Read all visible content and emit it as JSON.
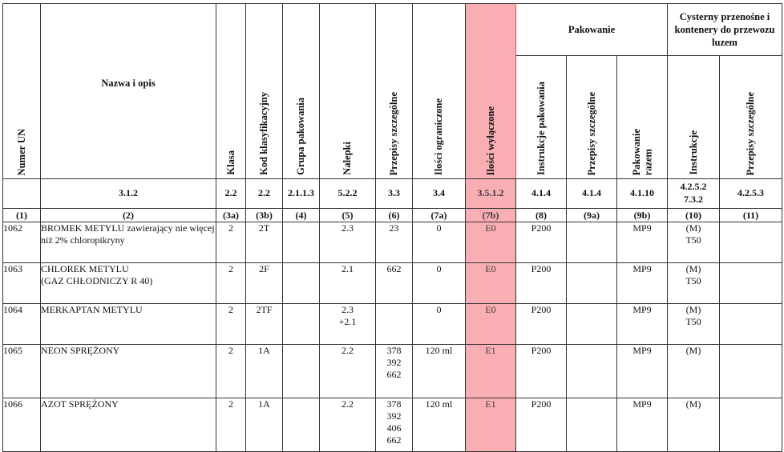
{
  "headers": {
    "un_number": "Numer UN",
    "name": "Nazwa i opis",
    "class": "Klasa",
    "class_code": "Kod klasyfikacyjny",
    "packing_group": "Grupa pakowania",
    "labels": "Nalepki",
    "special_provisions": "Przepisy szczególne",
    "limited_quantities": "Ilości ograniczone",
    "excepted_quantities": "Ilości wyłączone",
    "packaging_group": "Pakowanie",
    "packing_instructions": "Instrukcje pakowania",
    "packing_special": "Przepisy szczególne",
    "mixed_packing": "Pakowanie\nrazem",
    "tanks_group": "Cysterny przenośne i kontenery do przewozu luzem",
    "tank_instructions": "Instrukcje",
    "tank_special": "Przepisy szczególne"
  },
  "refs": [
    "",
    "3.1.2",
    "2.2",
    "2.2",
    "2.1.1.3",
    "5.2.2",
    "3.3",
    "3.4",
    "3.5.1.2",
    "4.1.4",
    "4.1.4",
    "4.1.10",
    "4.2.5.2\n7.3.2",
    "4.2.5.3"
  ],
  "colnums": [
    "(1)",
    "(2)",
    "(3a)",
    "(3b)",
    "(4)",
    "(5)",
    "(6)",
    "(7a)",
    "(7b)",
    "(8)",
    "(9a)",
    "(9b)",
    "(10)",
    "(11)"
  ],
  "rows": [
    {
      "un": "1062",
      "name": "BROMEK METYLU zawierający nie więcej niż 2% chloropikryny",
      "cls": "2",
      "code": "2T",
      "pg": "",
      "labels": "2.3",
      "sp": "23",
      "lq": "0",
      "eq": "E0",
      "pi": "P200",
      "pp": "",
      "mp": "MP9",
      "ti": "(M)\nT50",
      "tp": ""
    },
    {
      "un": "1063",
      "name": "CHLOREK METYLU\n(GAZ CHŁODNICZY R 40)",
      "cls": "2",
      "code": "2F",
      "pg": "",
      "labels": "2.1",
      "sp": "662",
      "lq": "0",
      "eq": "E0",
      "pi": "P200",
      "pp": "",
      "mp": "MP9",
      "ti": "(M)\nT50",
      "tp": ""
    },
    {
      "un": "1064",
      "name": "MERKAPTAN METYLU",
      "cls": "2",
      "code": "2TF",
      "pg": "",
      "labels": "2.3\n+2.1",
      "sp": "",
      "lq": "0",
      "eq": "E0",
      "pi": "P200",
      "pp": "",
      "mp": "MP9",
      "ti": "(M)\nT50",
      "tp": ""
    },
    {
      "un": "1065",
      "name": "NEON SPRĘŻONY",
      "cls": "2",
      "code": "1A",
      "pg": "",
      "labels": "2.2",
      "sp": "378\n392\n662",
      "lq": "120 ml",
      "eq": "E1",
      "pi": "P200",
      "pp": "",
      "mp": "MP9",
      "ti": "(M)",
      "tp": ""
    },
    {
      "un": "1066",
      "name": "AZOT SPRĘŻONY",
      "cls": "2",
      "code": "1A",
      "pg": "",
      "labels": "2.2",
      "sp": "378\n392\n406\n662",
      "lq": "120 ml",
      "eq": "E1",
      "pi": "P200",
      "pp": "",
      "mp": "MP9",
      "ti": "(M)",
      "tp": ""
    }
  ],
  "colors": {
    "highlight": "#f9aeb4",
    "border": "#333333"
  }
}
